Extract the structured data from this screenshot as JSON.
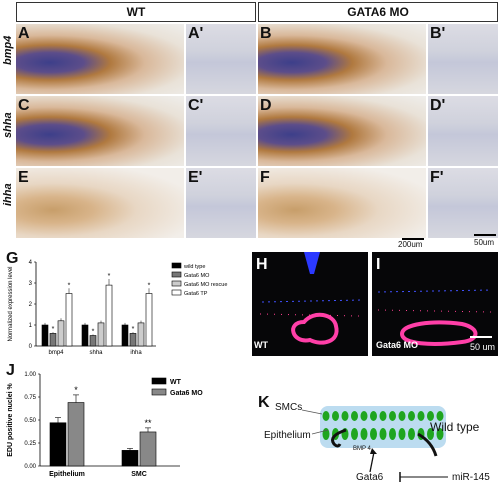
{
  "headers": {
    "wt": "WT",
    "mo": "GATA6 MO"
  },
  "genes": {
    "bmp4": "bmp4",
    "shha": "shha",
    "ihha": "ihha"
  },
  "panel_labels": {
    "A": "A",
    "A1": "A'",
    "B": "B",
    "B1": "B'",
    "C": "C",
    "C1": "C'",
    "D": "D",
    "D1": "D'",
    "E": "E",
    "E1": "E'",
    "F": "F",
    "F1": "F'",
    "G": "G",
    "H": "H",
    "I": "I",
    "J": "J",
    "K": "K"
  },
  "scalebars": {
    "whole": "200um",
    "zoom": "50um",
    "confocal": "50 um"
  },
  "confocal": {
    "wt": "WT",
    "mo": "Gata6 MO"
  },
  "chart_data": [
    {
      "type": "bar",
      "panel": "G",
      "ylabel": "Normalized expression level",
      "ylim": [
        0,
        4
      ],
      "yticks": [
        0,
        1,
        2,
        3,
        4
      ],
      "categories": [
        "bmp4",
        "shha",
        "ihha"
      ],
      "series": [
        {
          "name": "wild type",
          "values": [
            1,
            1,
            1
          ],
          "color": "#000000"
        },
        {
          "name": "Gata6 MO",
          "values": [
            0.6,
            0.5,
            0.6
          ],
          "color": "#777777"
        },
        {
          "name": "Gata6 MO rescue",
          "values": [
            1.2,
            1.1,
            1.1
          ],
          "color": "#cccccc"
        },
        {
          "name": "Gata6 TP",
          "values": [
            2.5,
            2.9,
            2.5
          ],
          "color": "#ffffff"
        }
      ],
      "significance": {
        "Gata6 MO": "*",
        "Gata6 TP": "*"
      }
    },
    {
      "type": "bar",
      "panel": "J",
      "ylabel": "EDU positive nuclei %",
      "ylim": [
        0,
        1
      ],
      "yticks": [
        "0.00",
        "0.25",
        "0.50",
        "0.75",
        "1.00"
      ],
      "categories": [
        "Epithelium",
        "SMC"
      ],
      "series": [
        {
          "name": "WT",
          "values": [
            0.47,
            0.17
          ],
          "color": "#000000"
        },
        {
          "name": "Gata6 MO",
          "values": [
            0.69,
            0.37
          ],
          "color": "#888888"
        }
      ],
      "significance": [
        "*",
        "**"
      ]
    }
  ],
  "diagram": {
    "smcs": "SMCs",
    "epithelium": "Epithelium",
    "wildtype": "Wild type",
    "bmp4": "BMP 4",
    "gata6": "Gata6",
    "mir": "miR-145"
  }
}
